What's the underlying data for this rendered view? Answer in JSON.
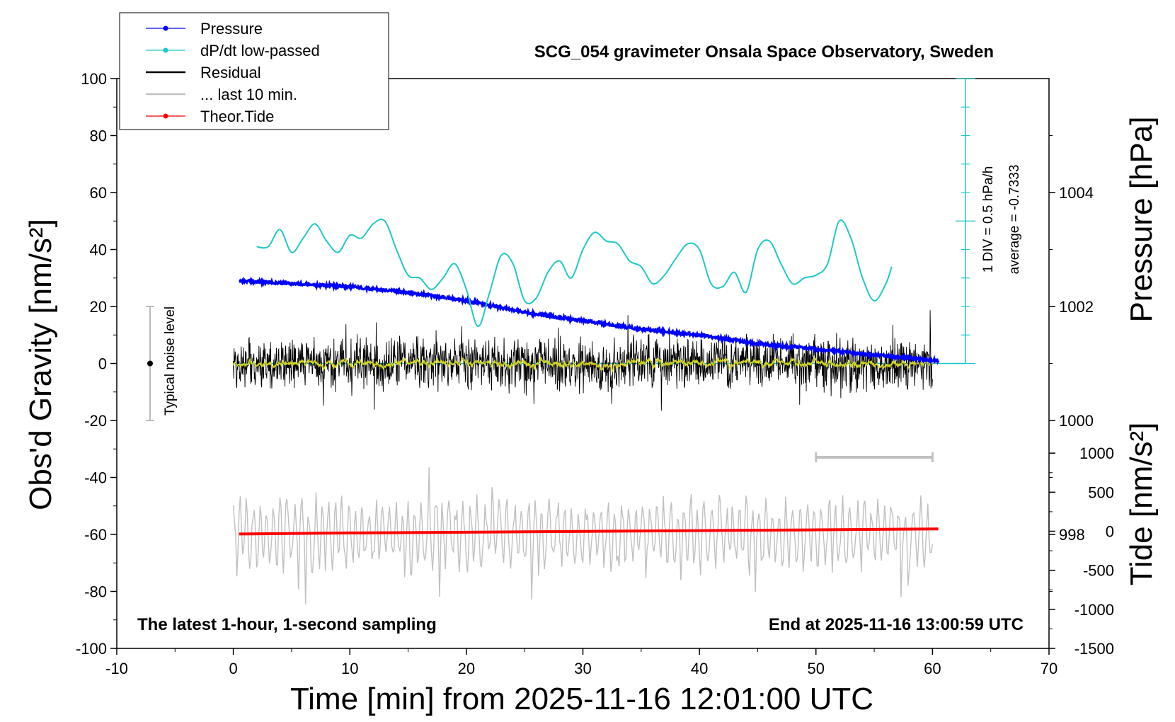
{
  "chart_data": {
    "type": "line",
    "title": "SCG_054 gravimeter Onsala Space Observatory, Sweden",
    "xlabel": "Time [min] from 2025-11-16 12:01:00 UTC",
    "ylabel": "Obs'd Gravity [nm/s²]",
    "y2label": "Pressure [hPa]",
    "y3label": "Tide [nm/s²]",
    "xlim": [
      -10,
      70
    ],
    "ylim": [
      -100,
      100
    ],
    "pressure_lim": [
      996,
      1006
    ],
    "tide_lim": [
      -1500,
      1500
    ],
    "x_ticks": [
      "-10",
      "0",
      "10",
      "20",
      "30",
      "40",
      "50",
      "60",
      "70"
    ],
    "y_ticks": [
      "-100",
      "-80",
      "-60",
      "-40",
      "-20",
      "0",
      "20",
      "40",
      "60",
      "80",
      "100"
    ],
    "pressure_ticks": [
      "998",
      "1000",
      "1002",
      "1004"
    ],
    "tide_ticks": [
      "-1500",
      "-1000",
      "-500",
      "0",
      "500",
      "1000"
    ],
    "bottom_left_note": "The latest 1-hour, 1-second sampling",
    "bottom_right_note": "End at 2025-11-16 13:00:59 UTC",
    "noise_label": "Typical noise level",
    "noise_bar": [
      -20,
      20
    ],
    "dpdt_scale_note": "1 DIV = 0.5 hPa/h",
    "dpdt_average_note": "average = -0.7333",
    "last10_window": [
      50,
      60
    ],
    "legend": [
      {
        "name": "Pressure",
        "color": "#0000ff",
        "marker": true
      },
      {
        "name": "dP/dt low-passed",
        "color": "#1ec8c8",
        "marker": true
      },
      {
        "name": "Residual",
        "color": "#000000",
        "marker": false
      },
      {
        "name": "... last 10 min.",
        "color": "#c0c0c0",
        "marker": false
      },
      {
        "name": "Theor.Tide",
        "color": "#ff0000",
        "marker": true
      }
    ],
    "series": [
      {
        "name": "Pressure",
        "color": "#0000ff",
        "axis": "pressure",
        "x": [
          0.5,
          5,
          10,
          15,
          20,
          25,
          30,
          35,
          40,
          45,
          50,
          55,
          60.5
        ],
        "y": [
          1002.45,
          1002.4,
          1002.35,
          1002.25,
          1002.1,
          1001.9,
          1001.75,
          1001.6,
          1001.5,
          1001.35,
          1001.25,
          1001.15,
          1001.05
        ]
      },
      {
        "name": "dP/dt low-passed",
        "color": "#1ec8c8",
        "axis": "left",
        "x": [
          2,
          3,
          4,
          5,
          6,
          7,
          8,
          9,
          10,
          11,
          12,
          13,
          14,
          15,
          16,
          17,
          18,
          19,
          20,
          21,
          22,
          23,
          24,
          25,
          26,
          27,
          28,
          29,
          30,
          31,
          32,
          33,
          34,
          35,
          36,
          37,
          38,
          39,
          40,
          41,
          42,
          43,
          44,
          45,
          46,
          47,
          48,
          49,
          50,
          51,
          52,
          53,
          54,
          55,
          56,
          56.5
        ],
        "y": [
          41,
          41,
          47,
          39,
          44,
          49,
          43,
          39,
          45,
          44,
          49,
          50,
          40,
          31,
          30,
          26,
          30,
          35,
          26,
          13,
          25,
          38,
          35,
          22,
          23,
          32,
          36,
          30,
          40,
          46,
          43,
          42,
          36,
          34,
          28,
          31,
          37,
          42,
          40,
          28,
          27,
          32,
          25,
          40,
          43,
          35,
          28,
          30,
          31,
          35,
          50,
          44,
          30,
          22,
          28,
          34
        ]
      },
      {
        "name": "Residual",
        "color": "#000000",
        "axis": "left",
        "x": [
          0,
          60
        ],
        "y": [
          0,
          0
        ]
      },
      {
        "name": "... last 10 min.",
        "color": "#c0c0c0",
        "axis": "left",
        "x": [
          0,
          60
        ],
        "y": [
          -60,
          -60
        ]
      },
      {
        "name": "Theor.Tide",
        "color": "#ff0000",
        "axis": "tide",
        "x": [
          0.5,
          10,
          20,
          30,
          40,
          50,
          60.5
        ],
        "y": [
          -35,
          -22,
          -12,
          -2,
          8,
          18,
          30
        ]
      }
    ],
    "grid": false,
    "legend_position": "top-left"
  }
}
